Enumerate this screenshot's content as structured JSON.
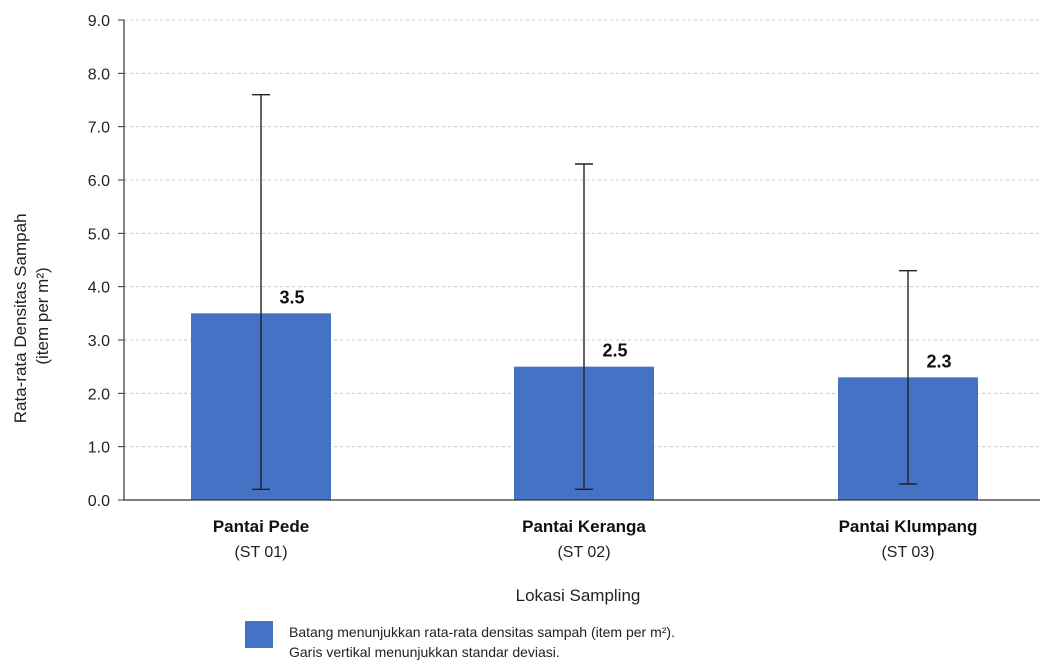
{
  "chart_data": {
    "type": "bar",
    "categories": [
      "Pantai Pede",
      "Pantai Keranga",
      "Pantai Klumpang"
    ],
    "category_codes": [
      "(ST 01)",
      "(ST 02)",
      "(ST 03)"
    ],
    "values": [
      3.5,
      2.5,
      2.3
    ],
    "data_labels": [
      "3.5",
      "2.5",
      "2.3"
    ],
    "error_low": [
      0.2,
      0.2,
      0.3
    ],
    "error_high": [
      7.6,
      6.3,
      4.3
    ],
    "ylim": [
      0,
      9
    ],
    "yticks": [
      "0.0",
      "1.0",
      "2.0",
      "3.0",
      "4.0",
      "5.0",
      "6.0",
      "7.0",
      "8.0",
      "9.0"
    ],
    "ylabel_line1": "Rata-rata Densitas Sampah",
    "ylabel_line2": "(item per m²)",
    "xlabel": "Lokasi Sampling",
    "grid": true,
    "legend_position": "bottom",
    "legend_line1": "Batang menunjukkan rata-rata densitas sampah (item per m²).",
    "legend_line2": "Garis vertikal menunjukkan standar deviasi.",
    "colors": {
      "bar": "#4472c4",
      "grid": "#c8c8c8",
      "axis": "#333333",
      "error": "#222222"
    }
  }
}
